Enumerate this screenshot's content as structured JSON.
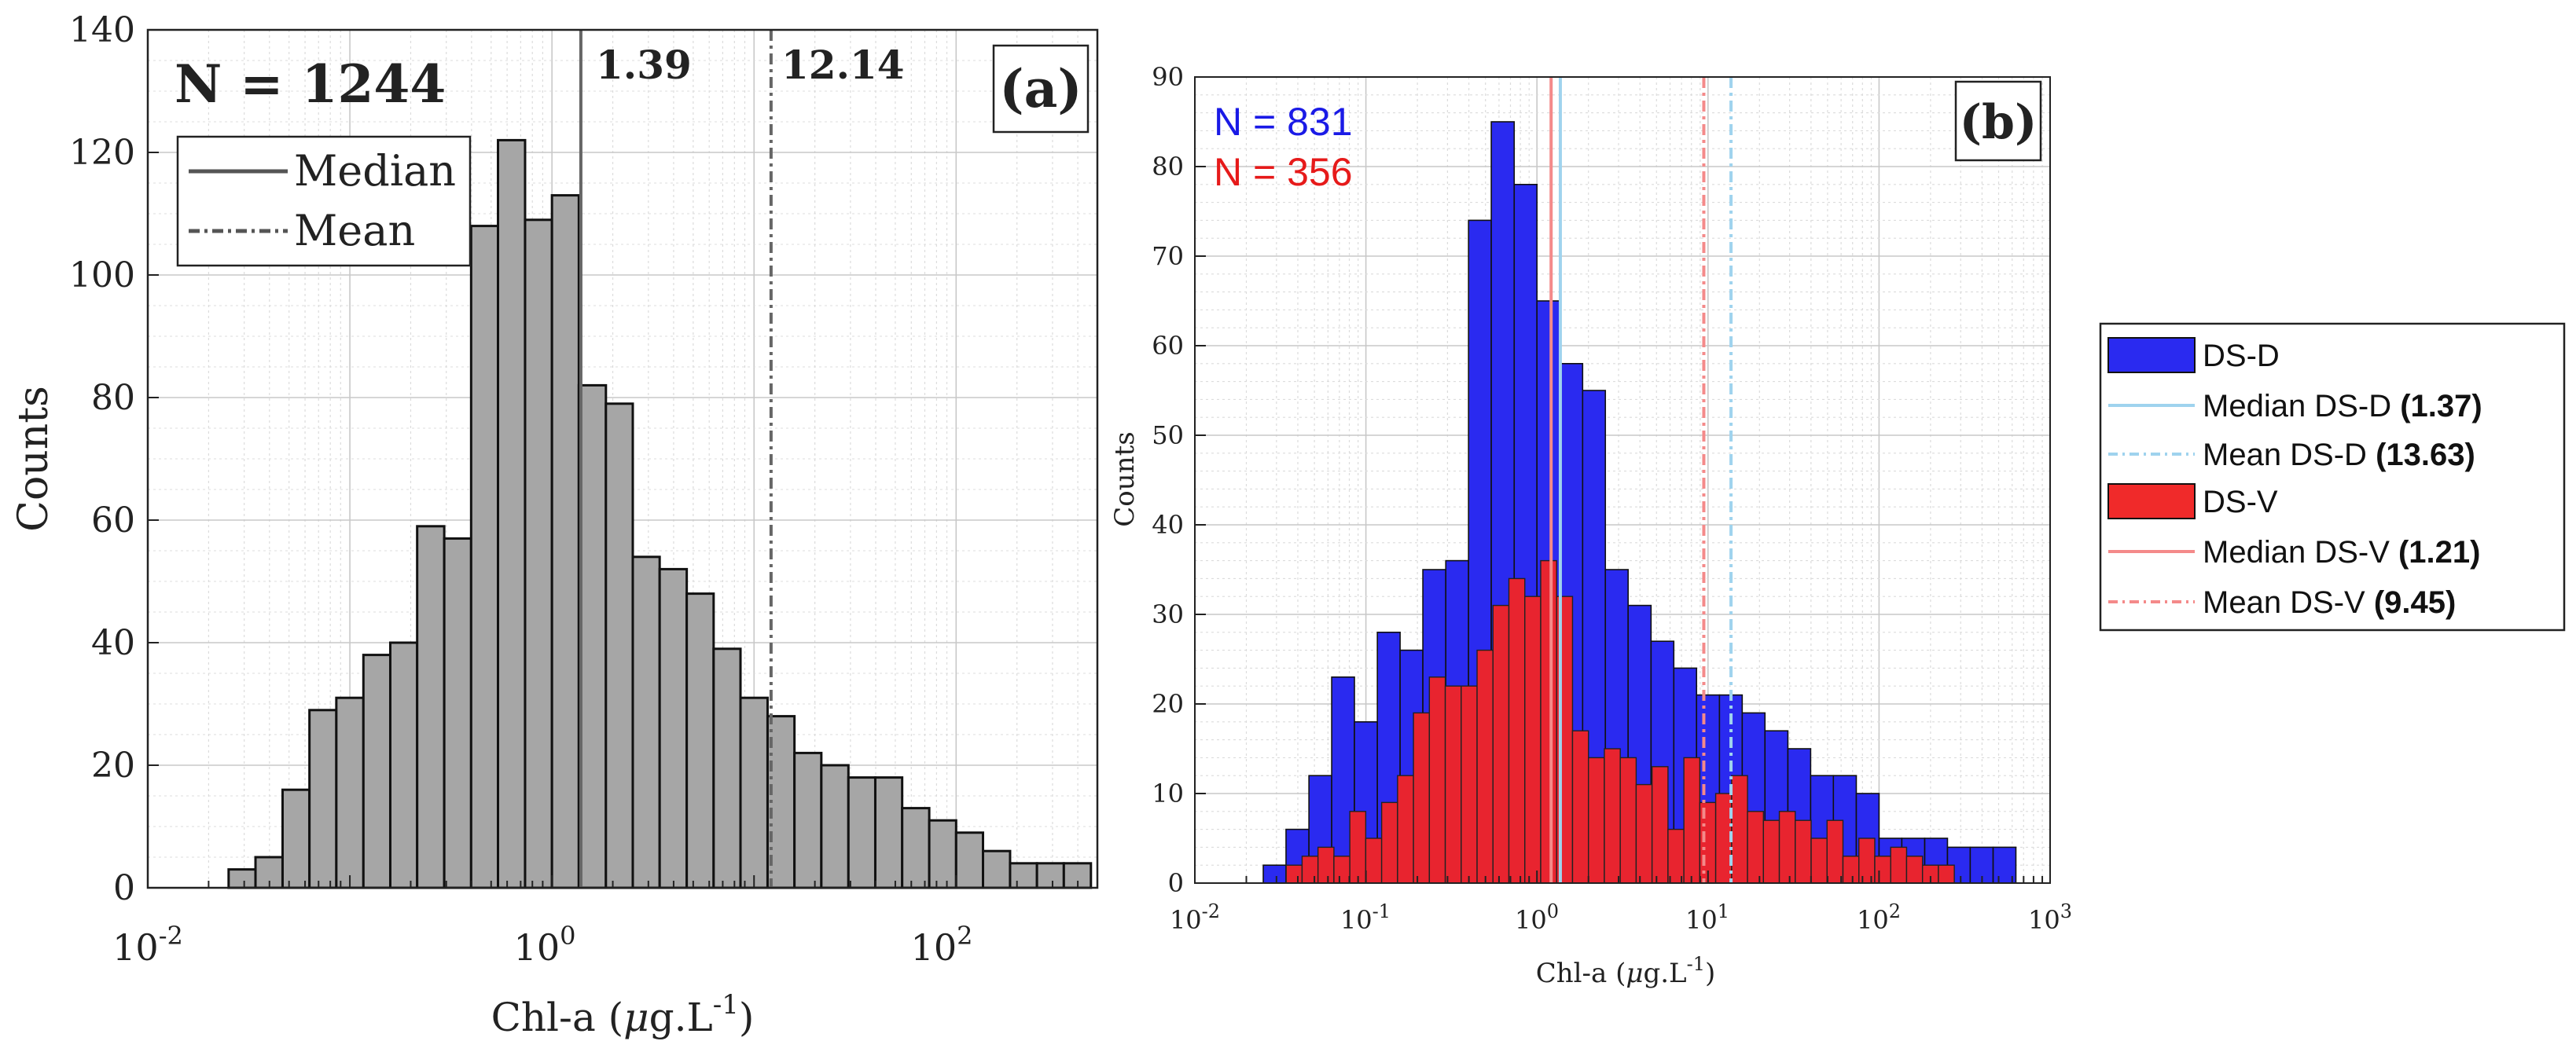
{
  "panel_a": {
    "letter": "(a)",
    "n_label": "N = 1244",
    "median_label": "1.39",
    "mean_label": "12.14",
    "legend": [
      {
        "label": "Median",
        "style": "solid"
      },
      {
        "label": "Mean",
        "style": "dashed"
      }
    ],
    "xlabel_prefix": "Chl-a (",
    "xlabel_mu": "μ",
    "xlabel_unit": "g.L",
    "xlabel_exp": "-1",
    "xlabel_suffix": ")",
    "ylabel": "Counts",
    "x_tick_labels": [
      {
        "base": "10",
        "exp": "-2"
      },
      {
        "base": "10",
        "exp": "0"
      },
      {
        "base": "10",
        "exp": "2"
      }
    ],
    "y_tick_labels": [
      "0",
      "20",
      "40",
      "60",
      "80",
      "100",
      "120",
      "140"
    ]
  },
  "panel_b": {
    "letter": "(b)",
    "n_d_label": "N = 831",
    "n_v_label": "N = 356",
    "xlabel_prefix": "Chl-a (",
    "xlabel_mu": "μ",
    "xlabel_unit": "g.L",
    "xlabel_exp": "-1",
    "xlabel_suffix": ")",
    "ylabel": "Counts",
    "x_tick_labels": [
      {
        "base": "10",
        "exp": "-2"
      },
      {
        "base": "10",
        "exp": "-1"
      },
      {
        "base": "10",
        "exp": "0"
      },
      {
        "base": "10",
        "exp": "1"
      },
      {
        "base": "10",
        "exp": "2"
      },
      {
        "base": "10",
        "exp": "3"
      }
    ],
    "y_tick_labels": [
      "0",
      "10",
      "20",
      "30",
      "40",
      "50",
      "60",
      "70",
      "80",
      "90"
    ],
    "legend": [
      {
        "type": "patch",
        "color": "#2a2af0",
        "label": "DS-D",
        "value": ""
      },
      {
        "type": "line",
        "style": "solid",
        "color": "#9fd3ee",
        "label": "Median DS-D ",
        "value": "(1.37)"
      },
      {
        "type": "line",
        "style": "dashed",
        "color": "#9fd3ee",
        "label": "Mean DS-D ",
        "value": "(13.63)"
      },
      {
        "type": "patch",
        "color": "#f02a2a",
        "label": "DS-V",
        "value": ""
      },
      {
        "type": "line",
        "style": "solid",
        "color": "#f48a8a",
        "label": "Median DS-V ",
        "value": "(1.21)"
      },
      {
        "type": "line",
        "style": "dashed",
        "color": "#f48a8a",
        "label": "Mean DS-V ",
        "value": "(9.45)"
      }
    ]
  },
  "colors": {
    "gray_bar": "#a6a6a6",
    "blue_bar": "#2a2af0",
    "red_bar": "#e8242f",
    "median_d": "#9fd3ee",
    "median_v": "#f48a8a",
    "n_blue": "#1a1ae6",
    "n_red": "#e61a1a"
  },
  "chart_data": [
    {
      "id": "a",
      "type": "bar",
      "title": "",
      "xlabel": "Chl-a (μg.L-1)",
      "ylabel": "Counts",
      "xscale": "log",
      "xlim": [
        0.01,
        500
      ],
      "ylim": [
        0,
        140
      ],
      "bin_edges_log10": [
        -1.6,
        -1.467,
        -1.333,
        -1.2,
        -1.067,
        -0.933,
        -0.8,
        -0.667,
        -0.533,
        -0.4,
        -0.267,
        -0.133,
        0.0,
        0.133,
        0.267,
        0.4,
        0.533,
        0.667,
        0.8,
        0.933,
        1.067,
        1.2,
        1.333,
        1.467,
        1.6,
        1.733,
        1.867,
        2.0,
        2.133,
        2.267,
        2.4,
        2.533,
        2.667
      ],
      "counts": [
        3,
        5,
        16,
        29,
        31,
        38,
        40,
        59,
        57,
        108,
        122,
        109,
        113,
        82,
        79,
        54,
        52,
        48,
        39,
        31,
        28,
        22,
        20,
        18,
        18,
        13,
        11,
        9,
        6,
        4,
        4,
        4
      ],
      "median": 1.39,
      "mean": 12.14,
      "n": 1244
    },
    {
      "id": "b",
      "type": "bar",
      "title": "",
      "xlabel": "Chl-a (μg.L-1)",
      "ylabel": "Counts",
      "xscale": "log",
      "xlim": [
        0.01,
        1000
      ],
      "ylim": [
        0,
        90
      ],
      "series": [
        {
          "name": "DS-D",
          "n": 831,
          "median": 1.37,
          "mean": 13.63,
          "bin_edges_log10": [
            -1.6,
            -1.467,
            -1.333,
            -1.2,
            -1.067,
            -0.933,
            -0.8,
            -0.667,
            -0.533,
            -0.4,
            -0.267,
            -0.133,
            0.0,
            0.133,
            0.267,
            0.4,
            0.533,
            0.667,
            0.8,
            0.933,
            1.067,
            1.2,
            1.333,
            1.467,
            1.6,
            1.733,
            1.867,
            2.0,
            2.133,
            2.267,
            2.4,
            2.533,
            2.667,
            2.8
          ],
          "counts": [
            2,
            6,
            12,
            23,
            18,
            28,
            26,
            35,
            36,
            74,
            85,
            78,
            65,
            58,
            55,
            35,
            31,
            27,
            24,
            21,
            21,
            19,
            17,
            15,
            12,
            12,
            10,
            5,
            5,
            5,
            4,
            4,
            4
          ]
        },
        {
          "name": "DS-V",
          "n": 356,
          "median": 1.21,
          "mean": 9.45,
          "bin_edges_log10": [
            -1.466,
            -1.373,
            -1.28,
            -1.187,
            -1.094,
            -1.001,
            -0.908,
            -0.815,
            -0.722,
            -0.629,
            -0.536,
            -0.443,
            -0.35,
            -0.257,
            -0.164,
            -0.071,
            0.022,
            0.115,
            0.208,
            0.301,
            0.394,
            0.487,
            0.58,
            0.673,
            0.766,
            0.859,
            0.952,
            1.045,
            1.138,
            1.231,
            1.324,
            1.417,
            1.51,
            1.603,
            1.696,
            1.789,
            1.882,
            1.975,
            2.068,
            2.161,
            2.254,
            2.347,
            2.44
          ],
          "counts": [
            2,
            3,
            4,
            3,
            8,
            5,
            9,
            12,
            19,
            23,
            22,
            22,
            26,
            31,
            34,
            32,
            36,
            32,
            17,
            14,
            15,
            14,
            11,
            13,
            6,
            14,
            9,
            10,
            12,
            8,
            7,
            8,
            7,
            5,
            7,
            3,
            5,
            3,
            4,
            3,
            2,
            2
          ]
        }
      ],
      "reference_lines": [
        {
          "name": "Median DS-D",
          "x": 1.37,
          "style": "solid"
        },
        {
          "name": "Mean DS-D",
          "x": 13.63,
          "style": "dashed"
        },
        {
          "name": "Median DS-V",
          "x": 1.21,
          "style": "solid"
        },
        {
          "name": "Mean DS-V",
          "x": 9.45,
          "style": "dashed"
        }
      ]
    }
  ]
}
